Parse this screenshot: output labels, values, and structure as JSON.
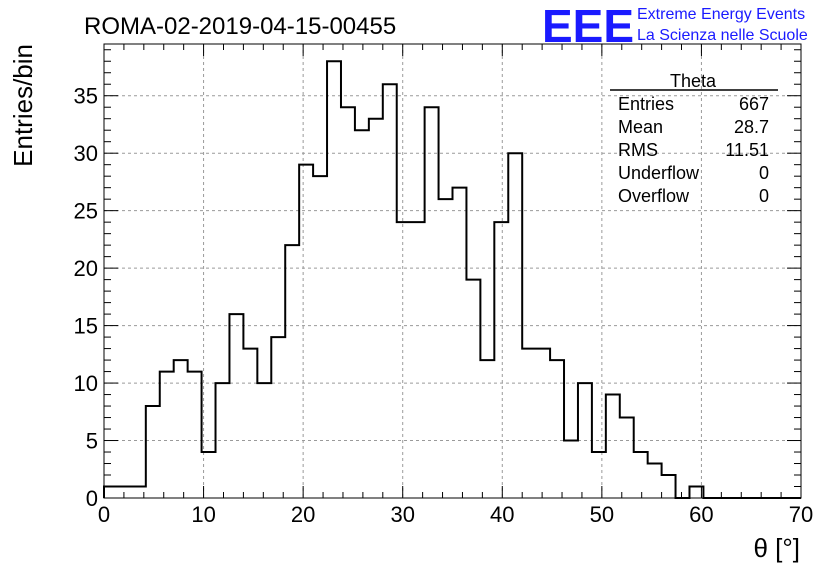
{
  "title": "ROMA-02-2019-04-15-00455",
  "logo": {
    "mark": "EEE",
    "line1": "Extreme Energy Events",
    "line2": "La Scienza nelle Scuole",
    "color": "#1a1aff"
  },
  "stats": {
    "name": "Theta",
    "rows": [
      {
        "label": "Entries",
        "value": "667"
      },
      {
        "label": "Mean",
        "value": "28.7"
      },
      {
        "label": "RMS",
        "value": "11.51"
      },
      {
        "label": "Underflow",
        "value": "0"
      },
      {
        "label": "Overflow",
        "value": "0"
      }
    ]
  },
  "chart_data": {
    "type": "bar",
    "style": "step-histogram",
    "title": "ROMA-02-2019-04-15-00455",
    "xlabel": "θ [°]",
    "ylabel": "Entries/bin",
    "xlim": [
      0,
      70
    ],
    "ylim": [
      0,
      39.5
    ],
    "bin_width": 1.4,
    "x_ticks": [
      0,
      10,
      20,
      30,
      40,
      50,
      60,
      70
    ],
    "y_ticks": [
      0,
      5,
      10,
      15,
      20,
      25,
      30,
      35
    ],
    "grid": true,
    "values": [
      1,
      1,
      1,
      8,
      11,
      12,
      11,
      4,
      10,
      16,
      13,
      10,
      14,
      22,
      29,
      28,
      38,
      34,
      32,
      33,
      36,
      24,
      24,
      34,
      26,
      27,
      19,
      12,
      24,
      30,
      13,
      13,
      12,
      5,
      10,
      4,
      9,
      7,
      4,
      3,
      2,
      0,
      1,
      0,
      0,
      0,
      0,
      0,
      0,
      0
    ]
  }
}
